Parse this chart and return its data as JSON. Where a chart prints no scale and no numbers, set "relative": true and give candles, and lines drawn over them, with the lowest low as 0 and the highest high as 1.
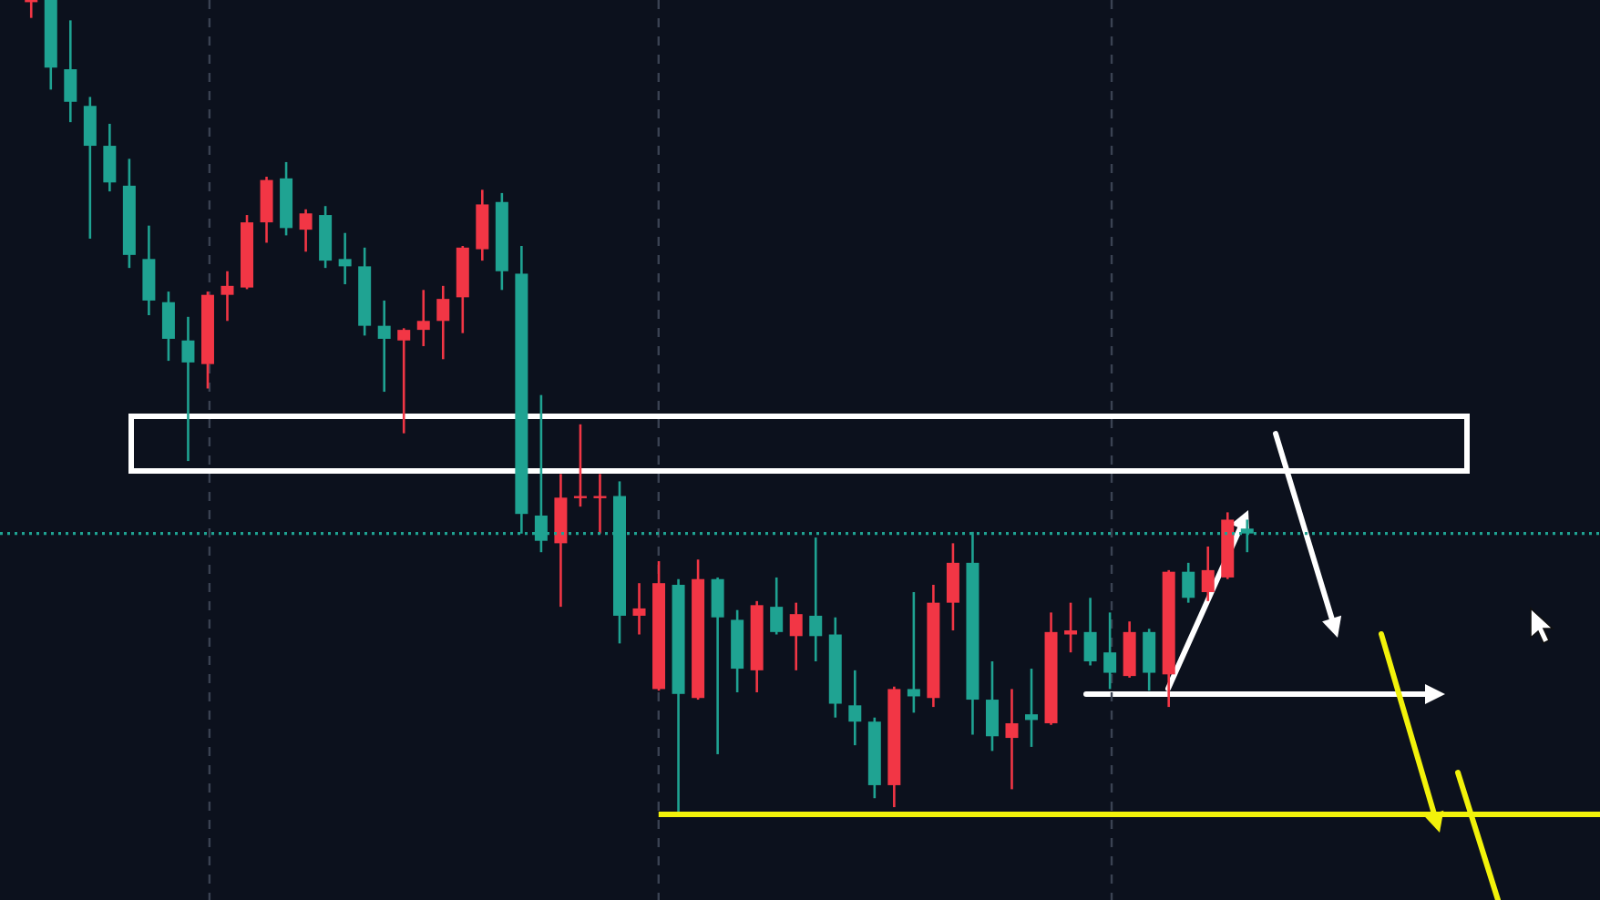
{
  "chart_data": {
    "type": "candlestick",
    "relative": true,
    "grid": "x",
    "categories": [
      null,
      null,
      null,
      null,
      null,
      null,
      null,
      null,
      null,
      null,
      null,
      null,
      null,
      null,
      null,
      null,
      null,
      null,
      null,
      null,
      null,
      null,
      null,
      null,
      null,
      null,
      null,
      null,
      null,
      null,
      null,
      null,
      null,
      null,
      null,
      null,
      null,
      null,
      null,
      null,
      null,
      null,
      null,
      null,
      null,
      null,
      null,
      null,
      null,
      null,
      null,
      null,
      null,
      null,
      null,
      null,
      null,
      null,
      null,
      null,
      null,
      null,
      null
    ],
    "ohlc": [
      [
        1,
        1,
        0.978,
        1
      ],
      [
        1,
        1,
        0.89,
        0.917
      ],
      [
        0.915,
        0.975,
        0.85,
        0.875
      ],
      [
        0.87,
        0.881,
        0.707,
        0.821
      ],
      [
        0.821,
        0.848,
        0.765,
        0.776
      ],
      [
        0.772,
        0.805,
        0.671,
        0.687
      ],
      [
        0.682,
        0.723,
        0.613,
        0.631
      ],
      [
        0.629,
        0.642,
        0.557,
        0.584
      ],
      [
        0.582,
        0.611,
        0.434,
        0.555
      ],
      [
        0.553,
        0.642,
        0.523,
        0.638
      ],
      [
        0.638,
        0.667,
        0.606,
        0.649
      ],
      [
        0.647,
        0.736,
        0.645,
        0.727
      ],
      [
        0.727,
        0.783,
        0.702,
        0.779
      ],
      [
        0.781,
        0.801,
        0.711,
        0.72
      ],
      [
        0.718,
        0.743,
        0.691,
        0.738
      ],
      [
        0.736,
        0.747,
        0.671,
        0.68
      ],
      [
        0.682,
        0.714,
        0.651,
        0.673
      ],
      [
        0.673,
        0.696,
        0.588,
        0.6
      ],
      [
        0.6,
        0.631,
        0.519,
        0.584
      ],
      [
        0.582,
        0.597,
        0.468,
        0.595
      ],
      [
        0.595,
        0.644,
        0.575,
        0.606
      ],
      [
        0.606,
        0.649,
        0.559,
        0.633
      ],
      [
        0.635,
        0.698,
        0.591,
        0.696
      ],
      [
        0.694,
        0.767,
        0.68,
        0.749
      ],
      [
        0.752,
        0.763,
        0.644,
        0.667
      ],
      [
        0.664,
        0.698,
        0.345,
        0.369
      ],
      [
        0.367,
        0.515,
        0.322,
        0.336
      ],
      [
        0.333,
        0.418,
        0.255,
        0.389
      ],
      [
        0.389,
        0.479,
        0.378,
        0.391
      ],
      [
        0.389,
        0.418,
        0.345,
        0.391
      ],
      [
        0.391,
        0.409,
        0.21,
        0.244
      ],
      [
        0.244,
        0.284,
        0.221,
        0.253
      ],
      [
        0.154,
        0.311,
        0.152,
        0.284
      ],
      [
        0.282,
        0.289,
        0,
        0.148
      ],
      [
        0.143,
        0.313,
        0.141,
        0.289
      ],
      [
        0.289,
        0.291,
        0.074,
        0.242
      ],
      [
        0.239,
        0.251,
        0.15,
        0.179
      ],
      [
        0.177,
        0.262,
        0.15,
        0.257
      ],
      [
        0.255,
        0.291,
        0.221,
        0.224
      ],
      [
        0.219,
        0.26,
        0.177,
        0.246
      ],
      [
        0.244,
        0.34,
        0.188,
        0.219
      ],
      [
        0.221,
        0.242,
        0.119,
        0.136
      ],
      [
        0.134,
        0.177,
        0.085,
        0.114
      ],
      [
        0.114,
        0.119,
        0.02,
        0.036
      ],
      [
        0.036,
        0.157,
        0.009,
        0.154
      ],
      [
        0.154,
        0.273,
        0.125,
        0.145
      ],
      [
        0.143,
        0.282,
        0.132,
        0.26
      ],
      [
        0.26,
        0.333,
        0.226,
        0.309
      ],
      [
        0.309,
        0.347,
        0.098,
        0.141
      ],
      [
        0.141,
        0.188,
        0.078,
        0.096
      ],
      [
        0.094,
        0.154,
        0.031,
        0.112
      ],
      [
        0.123,
        0.179,
        0.083,
        0.116
      ],
      [
        0.112,
        0.248,
        0.11,
        0.224
      ],
      [
        0.221,
        0.26,
        0.199,
        0.226
      ],
      [
        0.224,
        0.266,
        0.183,
        0.188
      ],
      [
        0.199,
        0.248,
        0.154,
        0.174
      ],
      [
        0.17,
        0.237,
        0.168,
        0.224
      ],
      [
        0.224,
        0.228,
        0.152,
        0.174
      ],
      [
        0.172,
        0.3,
        0.132,
        0.298
      ],
      [
        0.298,
        0.309,
        0.26,
        0.266
      ],
      [
        0.273,
        0.329,
        0.262,
        0.3
      ],
      [
        0.291,
        0.371,
        0.289,
        0.362
      ],
      [
        0.351,
        0.362,
        0.322,
        0.345
      ]
    ],
    "colors": [
      "#f23645",
      "#1fa392",
      "#1fa392",
      "#1fa392",
      "#1fa392",
      "#1fa392",
      "#1fa392",
      "#1fa392",
      "#1fa392",
      "#f23645",
      "#f23645",
      "#f23645",
      "#f23645",
      "#1fa392",
      "#f23645",
      "#1fa392",
      "#1fa392",
      "#1fa392",
      "#1fa392",
      "#f23645",
      "#f23645",
      "#f23645",
      "#f23645",
      "#f23645",
      "#1fa392",
      "#1fa392",
      "#1fa392",
      "#f23645",
      "#f23645",
      "#f23645",
      "#1fa392",
      "#f23645",
      "#f23645",
      "#1fa392",
      "#f23645",
      "#1fa392",
      "#1fa392",
      "#f23645",
      "#1fa392",
      "#f23645",
      "#1fa392",
      "#1fa392",
      "#1fa392",
      "#1fa392",
      "#f23645",
      "#1fa392",
      "#f23645",
      "#f23645",
      "#1fa392",
      "#1fa392",
      "#f23645",
      "#1fa392",
      "#f23645",
      "#f23645",
      "#1fa392",
      "#1fa392",
      "#f23645",
      "#1fa392",
      "#f23645",
      "#1fa392",
      "#f23645",
      "#f23645",
      "#1fa392"
    ],
    "ref_lines": [
      {
        "axis": "y",
        "value": 0.345,
        "color": "#1fa392",
        "line_style": "dotted"
      },
      {
        "axis": "y",
        "value": 0,
        "color": "#f2f20a",
        "line_style": "solid"
      }
    ]
  }
}
